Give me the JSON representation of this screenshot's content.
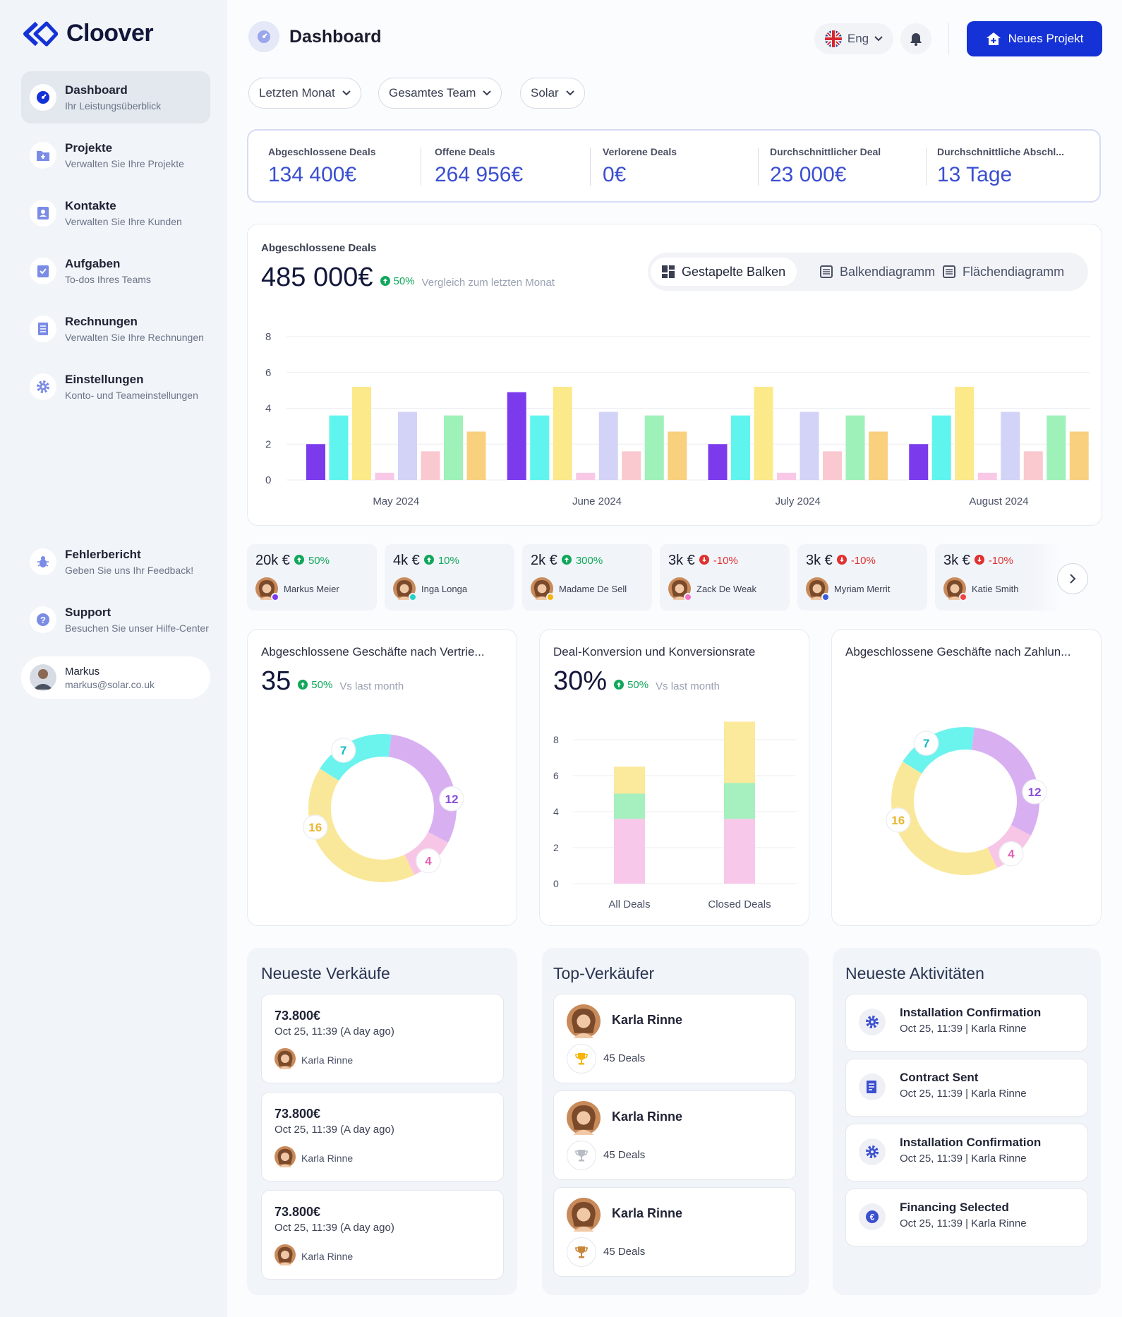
{
  "app": {
    "name": "Cloover"
  },
  "sidebar": {
    "items": [
      {
        "label": "Dashboard",
        "sub": "Ihr Leistungsüberblick"
      },
      {
        "label": "Projekte",
        "sub": "Verwalten Sie Ihre Projekte"
      },
      {
        "label": "Kontakte",
        "sub": "Verwalten Sie Ihre Kunden"
      },
      {
        "label": "Aufgaben",
        "sub": "To-dos Ihres Teams"
      },
      {
        "label": "Rechnungen",
        "sub": "Verwalten Sie Ihre Rechnungen"
      },
      {
        "label": "Einstellungen",
        "sub": "Konto- und Teameinstellungen"
      }
    ],
    "bottom": [
      {
        "label": "Fehlerbericht",
        "sub": "Geben Sie uns Ihr Feedback!"
      },
      {
        "label": "Support",
        "sub": "Besuchen Sie unser Hilfe-Center"
      }
    ],
    "user": {
      "name": "Markus",
      "email": "markus@solar.co.uk"
    }
  },
  "header": {
    "title": "Dashboard",
    "language": "Eng",
    "new_button": "Neues Projekt"
  },
  "filters": [
    "Letzten Monat",
    "Gesamtes Team",
    "Solar"
  ],
  "kpis": [
    {
      "label": "Abgeschlossene Deals",
      "value": "134 400€"
    },
    {
      "label": "Offene Deals",
      "value": "264 956€"
    },
    {
      "label": "Verlorene Deals",
      "value": "0€"
    },
    {
      "label": "Durchschnittlicher Deal",
      "value": "23 000€"
    },
    {
      "label": "Durchschnittliche Abschl...",
      "value": "13 Tage"
    }
  ],
  "main_chart": {
    "title": "Abgeschlossene Deals",
    "value": "485 000€",
    "change": "50%",
    "change_label": "Vergleich zum letzten Monat",
    "views": [
      "Gestapelte Balken",
      "Balkendiagramm",
      "Flächendiagramm"
    ]
  },
  "chart_data": [
    {
      "type": "bar",
      "categories": [
        "May 2024",
        "June 2024",
        "July 2024",
        "August 2024"
      ],
      "ylim": [
        0,
        8
      ],
      "yticks": [
        0,
        2,
        4,
        6,
        8
      ],
      "grid": true,
      "colors": [
        "#7c3aed",
        "#5ff5ee",
        "#fbe98a",
        "#f9c8e6",
        "#d3d3f8",
        "#f9c9cf",
        "#9ef1b8",
        "#f8d07e"
      ],
      "values": [
        [
          2,
          3.6,
          5.2,
          0.4,
          3.8,
          1.6,
          3.6,
          2.7
        ],
        [
          4.9,
          3.6,
          5.2,
          0.4,
          3.8,
          1.6,
          3.6,
          2.7
        ],
        [
          2,
          3.6,
          5.2,
          0.4,
          3.8,
          1.6,
          3.6,
          2.7
        ],
        [
          2,
          3.6,
          5.2,
          0.4,
          3.8,
          1.6,
          3.6,
          2.7
        ]
      ]
    },
    {
      "type": "pie",
      "values": [
        12,
        4,
        16,
        7
      ],
      "labels": [
        "12",
        "4",
        "16",
        "7"
      ],
      "colors": [
        "#d8b0f2",
        "#f7c6e6",
        "#fae89a",
        "#6bf3ee"
      ],
      "label_colors": [
        "#8a4fd8",
        "#e360b4",
        "#e8b630",
        "#12b7c4"
      ]
    },
    {
      "type": "bar",
      "stacked": true,
      "categories": [
        "All Deals",
        "Closed Deals"
      ],
      "ylim": [
        0,
        8
      ],
      "yticks": [
        0,
        2,
        4,
        6,
        8
      ],
      "series": [
        {
          "values": [
            3.6,
            3.6
          ],
          "color": "#f8c8ea"
        },
        {
          "values": [
            1.4,
            2.0
          ],
          "color": "#a6efbe"
        },
        {
          "values": [
            1.5,
            3.4
          ],
          "color": "#fbe99c"
        }
      ]
    },
    {
      "type": "pie",
      "values": [
        12,
        4,
        16,
        7
      ],
      "labels": [
        "12",
        "4",
        "16",
        "7"
      ],
      "colors": [
        "#d8b0f2",
        "#f7c6e6",
        "#fae89a",
        "#6bf3ee"
      ],
      "label_colors": [
        "#8a4fd8",
        "#e360b4",
        "#e8b630",
        "#12b7c4"
      ]
    }
  ],
  "salespeople": [
    {
      "value": "20k €",
      "change": "50%",
      "trend": "up",
      "name": "Markus Meier",
      "dot": "#7c3aed"
    },
    {
      "value": "4k €",
      "change": "10%",
      "trend": "up",
      "name": "Inga Longa",
      "dot": "#22d3c5"
    },
    {
      "value": "2k €",
      "change": "300%",
      "trend": "up",
      "name": "Madame De Sell",
      "dot": "#f5b50a"
    },
    {
      "value": "3k €",
      "change": "-10%",
      "trend": "down",
      "name": "Zack De Weak",
      "dot": "#f472c8"
    },
    {
      "value": "3k €",
      "change": "-10%",
      "trend": "down",
      "name": "Myriam Merrit",
      "dot": "#3b5bdb"
    },
    {
      "value": "3k €",
      "change": "-10%",
      "trend": "down",
      "name": "Katie Smith",
      "dot": "#ef4444"
    }
  ],
  "cards": {
    "sales_channel": {
      "title": "Abgeschlossene Geschäfte nach Vertrie...",
      "value": "35",
      "change": "50%",
      "vs": "Vs last month"
    },
    "conversion": {
      "title": "Deal-Konversion und Konversionsrate",
      "value": "30%",
      "change": "50%",
      "vs": "Vs last month"
    },
    "payment": {
      "title": "Abgeschlossene Geschäfte nach Zahlun..."
    }
  },
  "latest_sales": {
    "title": "Neueste Verkäufe",
    "items": [
      {
        "amount": "73.800€",
        "date": "Oct 25, 11:39 (A day ago)",
        "person": "Karla Rinne"
      },
      {
        "amount": "73.800€",
        "date": "Oct 25, 11:39 (A day ago)",
        "person": "Karla Rinne"
      },
      {
        "amount": "73.800€",
        "date": "Oct 25, 11:39 (A day ago)",
        "person": "Karla Rinne"
      }
    ]
  },
  "top_sellers": {
    "title": "Top-Verkäufer",
    "items": [
      {
        "name": "Karla Rinne",
        "deals": "45 Deals",
        "trophy": "#f5b50a"
      },
      {
        "name": "Karla Rinne",
        "deals": "45 Deals",
        "trophy": "#b8bcc6"
      },
      {
        "name": "Karla Rinne",
        "deals": "45 Deals",
        "trophy": "#c8863a"
      }
    ]
  },
  "activities": {
    "title": "Neueste Aktivitäten",
    "items": [
      {
        "title": "Installation Confirmation",
        "sub": "Oct 25, 11:39 | Karla Rinne",
        "icon": "gear-icon"
      },
      {
        "title": "Contract Sent",
        "sub": "Oct 25, 11:39 | Karla Rinne",
        "icon": "contract-icon"
      },
      {
        "title": "Installation Confirmation",
        "sub": "Oct 25, 11:39 | Karla Rinne",
        "icon": "gear-icon"
      },
      {
        "title": "Financing Selected",
        "sub": "Oct 25, 11:39 | Karla Rinne",
        "icon": "euro-icon"
      }
    ]
  }
}
